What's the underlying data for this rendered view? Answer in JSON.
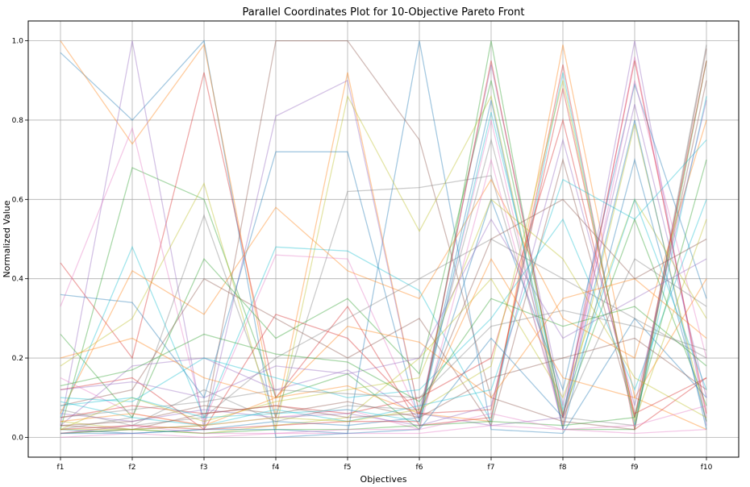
{
  "chart_data": {
    "type": "parallel-coordinates",
    "title": "Parallel Coordinates Plot for 10-Objective Pareto Front",
    "xlabel": "Objectives",
    "ylabel": "Normalized Value",
    "categories": [
      "f1",
      "f2",
      "f3",
      "f4",
      "f5",
      "f6",
      "f7",
      "f8",
      "f9",
      "f10"
    ],
    "ylim": [
      -0.05,
      1.05
    ],
    "yticks": [
      "0.0",
      "0.2",
      "0.4",
      "0.6",
      "0.8",
      "1.0"
    ],
    "grid": true,
    "legend": "none",
    "palette": [
      "#1f77b4",
      "#ff7f0e",
      "#2ca02c",
      "#d62728",
      "#9467bd",
      "#8c564b",
      "#e377c2",
      "#7f7f7f",
      "#bcbd22",
      "#17becf"
    ],
    "series": [
      {
        "values": [
          0.97,
          0.8,
          1.0,
          0.0,
          0.01,
          1.0,
          0.02,
          0.01,
          0.3,
          0.1
        ]
      },
      {
        "values": [
          1.0,
          0.74,
          0.99,
          0.05,
          0.92,
          0.06,
          0.04,
          0.99,
          0.1,
          0.02
        ]
      },
      {
        "values": [
          0.02,
          0.68,
          0.6,
          0.1,
          0.16,
          0.02,
          1.0,
          0.02,
          0.02,
          0.95
        ]
      },
      {
        "values": [
          0.44,
          0.2,
          0.92,
          0.1,
          0.33,
          0.03,
          0.05,
          0.94,
          0.02,
          0.15
        ]
      },
      {
        "values": [
          0.03,
          1.0,
          0.02,
          0.81,
          0.9,
          0.06,
          0.03,
          0.05,
          1.0,
          0.03
        ]
      },
      {
        "values": [
          0.01,
          0.02,
          0.03,
          1.0,
          1.0,
          0.75,
          0.1,
          0.04,
          0.02,
          0.98
        ]
      },
      {
        "values": [
          0.33,
          0.78,
          0.04,
          0.46,
          0.45,
          0.05,
          0.8,
          0.02,
          0.96,
          0.05
        ]
      },
      {
        "values": [
          0.02,
          0.05,
          0.56,
          0.05,
          0.62,
          0.63,
          0.66,
          0.05,
          0.03,
          0.99
        ]
      },
      {
        "values": [
          0.18,
          0.3,
          0.64,
          0.02,
          0.86,
          0.52,
          0.86,
          0.03,
          0.79,
          0.04
        ]
      },
      {
        "values": [
          0.05,
          0.48,
          0.05,
          0.48,
          0.47,
          0.37,
          0.04,
          0.92,
          0.03,
          0.86
        ]
      },
      {
        "values": [
          0.36,
          0.34,
          0.1,
          0.72,
          0.72,
          0.04,
          0.6,
          0.12,
          0.89,
          0.35
        ]
      },
      {
        "values": [
          0.06,
          0.42,
          0.31,
          0.58,
          0.42,
          0.35,
          0.65,
          0.3,
          0.2,
          0.8
        ]
      },
      {
        "values": [
          0.26,
          0.05,
          0.45,
          0.25,
          0.35,
          0.16,
          0.9,
          0.06,
          0.55,
          0.08
        ]
      },
      {
        "values": [
          0.12,
          0.15,
          0.02,
          0.31,
          0.25,
          0.06,
          0.07,
          0.88,
          0.05,
          0.95
        ]
      },
      {
        "values": [
          0.03,
          0.18,
          0.2,
          0.12,
          0.17,
          0.05,
          0.94,
          0.08,
          0.84,
          0.1
        ]
      },
      {
        "values": [
          0.08,
          0.12,
          0.4,
          0.3,
          0.2,
          0.3,
          0.03,
          0.7,
          0.05,
          0.9
        ]
      },
      {
        "values": [
          0.15,
          0.06,
          0.03,
          0.05,
          0.07,
          0.02,
          0.7,
          0.03,
          0.9,
          0.2
        ]
      },
      {
        "values": [
          0.01,
          0.03,
          0.05,
          0.2,
          0.3,
          0.4,
          0.5,
          0.4,
          0.3,
          0.2
        ]
      },
      {
        "values": [
          0.04,
          0.02,
          0.01,
          0.03,
          0.05,
          0.2,
          0.4,
          0.1,
          0.6,
          0.3
        ]
      },
      {
        "values": [
          0.1,
          0.09,
          0.2,
          0.15,
          0.1,
          0.12,
          0.3,
          0.55,
          0.12,
          0.6
        ]
      },
      {
        "values": [
          0.02,
          0.01,
          0.02,
          0.04,
          0.03,
          0.05,
          0.85,
          0.02,
          0.7,
          0.04
        ]
      },
      {
        "values": [
          0.2,
          0.25,
          0.15,
          0.1,
          0.28,
          0.24,
          0.1,
          0.35,
          0.4,
          0.25
        ]
      },
      {
        "values": [
          0.01,
          0.02,
          0.01,
          0.02,
          0.02,
          0.03,
          0.04,
          0.03,
          0.05,
          0.7
        ]
      },
      {
        "values": [
          0.05,
          0.08,
          0.06,
          0.08,
          0.06,
          0.1,
          0.2,
          0.8,
          0.06,
          0.15
        ]
      },
      {
        "values": [
          0.12,
          0.14,
          0.1,
          0.18,
          0.16,
          0.2,
          0.55,
          0.25,
          0.35,
          0.45
        ]
      },
      {
        "values": [
          0.03,
          0.04,
          0.08,
          0.06,
          0.09,
          0.05,
          0.15,
          0.2,
          0.25,
          0.12
        ]
      },
      {
        "values": [
          0.0,
          0.01,
          0.0,
          0.01,
          0.01,
          0.01,
          0.03,
          0.02,
          0.01,
          0.02
        ]
      },
      {
        "values": [
          0.07,
          0.03,
          0.12,
          0.04,
          0.08,
          0.07,
          0.75,
          0.05,
          0.45,
          0.33
        ]
      },
      {
        "values": [
          0.02,
          0.1,
          0.04,
          0.09,
          0.12,
          0.15,
          0.6,
          0.45,
          0.15,
          0.05
        ]
      },
      {
        "values": [
          0.09,
          0.05,
          0.03,
          0.07,
          0.04,
          0.08,
          0.12,
          0.65,
          0.55,
          0.75
        ]
      },
      {
        "values": [
          0.01,
          0.01,
          0.02,
          0.02,
          0.01,
          0.02,
          0.25,
          0.05,
          0.8,
          0.02
        ]
      },
      {
        "values": [
          0.04,
          0.06,
          0.03,
          0.1,
          0.13,
          0.06,
          0.45,
          0.15,
          0.1,
          0.4
        ]
      },
      {
        "values": [
          0.13,
          0.17,
          0.26,
          0.21,
          0.19,
          0.09,
          0.35,
          0.28,
          0.33,
          0.18
        ]
      },
      {
        "values": [
          0.02,
          0.03,
          0.02,
          0.03,
          0.04,
          0.04,
          0.95,
          0.05,
          0.95,
          0.06
        ]
      },
      {
        "values": [
          0.06,
          0.04,
          0.07,
          0.05,
          0.06,
          0.03,
          0.08,
          0.75,
          0.08,
          0.85
        ]
      },
      {
        "values": [
          0.03,
          0.02,
          0.06,
          0.08,
          0.05,
          0.06,
          0.5,
          0.6,
          0.4,
          0.5
        ]
      },
      {
        "values": [
          0.01,
          0.03,
          0.01,
          0.01,
          0.02,
          0.02,
          0.06,
          0.02,
          0.03,
          0.08
        ]
      },
      {
        "values": [
          0.05,
          0.07,
          0.09,
          0.12,
          0.11,
          0.1,
          0.28,
          0.32,
          0.28,
          0.22
        ]
      },
      {
        "values": [
          0.02,
          0.02,
          0.03,
          0.05,
          0.04,
          0.07,
          0.18,
          0.9,
          0.04,
          0.55
        ]
      },
      {
        "values": [
          0.08,
          0.1,
          0.05,
          0.06,
          0.07,
          0.04,
          0.82,
          0.07,
          0.6,
          0.12
        ]
      }
    ]
  }
}
